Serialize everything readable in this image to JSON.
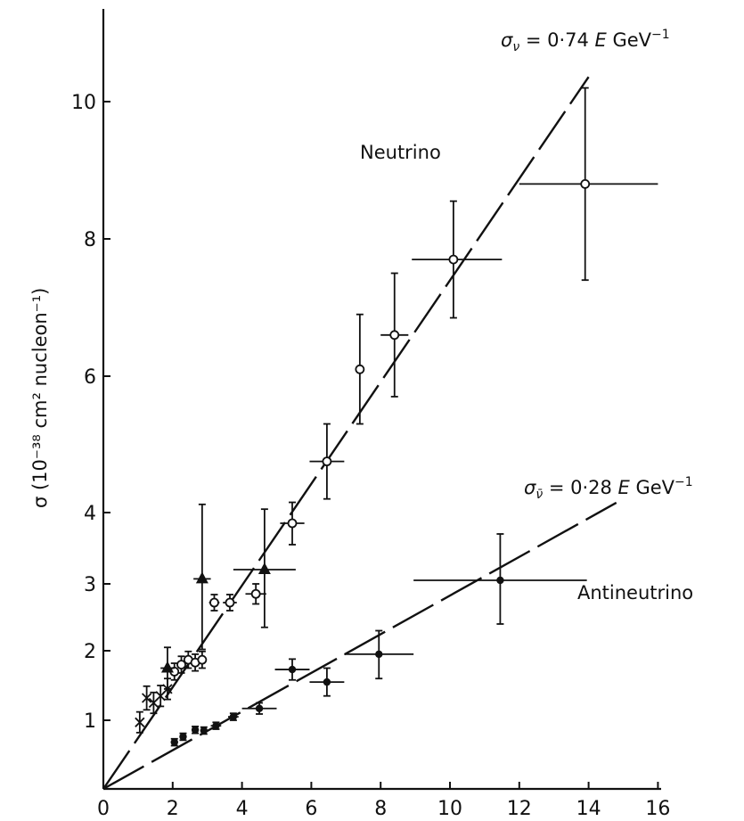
{
  "chart_data": {
    "type": "scatter",
    "title": "",
    "xlabel": "",
    "ylabel": "σ (10⁻³⁸ cm² nucleon⁻¹)",
    "xlim": [
      0,
      16
    ],
    "ylim": [
      0,
      11
    ],
    "grid": false,
    "x_ticks": [
      "0",
      "2",
      "4",
      "6",
      "8",
      "10",
      "12",
      "14",
      "16"
    ],
    "y_ticks": [
      "1",
      "2",
      "3",
      "4",
      "6",
      "8",
      "10"
    ],
    "fit_lines": [
      {
        "name": "σν = 0·74 E GeV⁻¹",
        "slope": 0.74,
        "x_range": [
          0,
          14
        ]
      },
      {
        "name": "σν̄ = 0·28 E GeV⁻¹",
        "slope": 0.28,
        "x_range": [
          0,
          14.8
        ]
      }
    ],
    "annotations": [
      {
        "text": "Neutrino"
      },
      {
        "text": "Antineutrino"
      }
    ],
    "series": [
      {
        "name": "Neutrino",
        "marker": "open-circle",
        "points": [
          {
            "x": 2.05,
            "y": 1.7,
            "yerr": 0.12
          },
          {
            "x": 2.25,
            "y": 1.8,
            "yerr": 0.12
          },
          {
            "x": 2.45,
            "y": 1.87,
            "yerr": 0.12
          },
          {
            "x": 2.65,
            "y": 1.83,
            "yerr": 0.12
          },
          {
            "x": 2.85,
            "y": 1.87,
            "yerr": 0.12
          },
          {
            "x": 3.2,
            "y": 2.72,
            "yerr": 0.12,
            "xerr": 0.15
          },
          {
            "x": 3.65,
            "y": 2.72,
            "yerr": 0.12,
            "xerr": 0.2
          },
          {
            "x": 4.4,
            "y": 2.85,
            "yerr": 0.15,
            "xerr": 0.3
          },
          {
            "x": 5.45,
            "y": 3.85,
            "yerr": 0.3,
            "xerr": 0.35
          },
          {
            "x": 6.45,
            "y": 4.75,
            "yerr": 0.55,
            "xerr": 0.5
          },
          {
            "x": 7.4,
            "y": 6.1,
            "yerr": 0.8,
            "xerr": 0.1
          },
          {
            "x": 8.4,
            "y": 6.6,
            "yerr": 0.9,
            "xerr": 0.4
          },
          {
            "x": 10.1,
            "y": 7.7,
            "yerr": 0.85,
            "xerr": [
              1.2,
              1.4
            ]
          },
          {
            "x": 13.9,
            "y": 8.8,
            "yerr": 1.4,
            "xerr": [
              1.9,
              2.1
            ]
          }
        ]
      },
      {
        "name": "Neutrino",
        "marker": "filled-triangle",
        "points": [
          {
            "x": 1.85,
            "y": 1.75,
            "yerr": 0.3,
            "xerr": 0.2
          },
          {
            "x": 2.85,
            "y": 3.07,
            "yerr": 1.05,
            "xerr": 0.25
          },
          {
            "x": 4.65,
            "y": 3.2,
            "yerr": 0.85,
            "xerr": 0.9
          }
        ]
      },
      {
        "name": "Neutrino",
        "marker": "cross",
        "points": [
          {
            "x": 1.05,
            "y": 0.97,
            "yerr": 0.15
          },
          {
            "x": 1.25,
            "y": 1.32,
            "yerr": 0.17
          },
          {
            "x": 1.45,
            "y": 1.25,
            "yerr": 0.15
          },
          {
            "x": 1.65,
            "y": 1.35,
            "yerr": 0.15
          },
          {
            "x": 1.85,
            "y": 1.45,
            "yerr": 0.15
          }
        ]
      },
      {
        "name": "Antineutrino",
        "marker": "filled-circle",
        "points": [
          {
            "x": 2.05,
            "y": 0.68,
            "yerr": 0.05,
            "xerr": 0.1
          },
          {
            "x": 2.3,
            "y": 0.76,
            "yerr": 0.05,
            "xerr": 0.1
          },
          {
            "x": 2.65,
            "y": 0.86,
            "yerr": 0.05,
            "xerr": 0.1
          },
          {
            "x": 2.9,
            "y": 0.85,
            "yerr": 0.05,
            "xerr": 0.1
          },
          {
            "x": 3.25,
            "y": 0.92,
            "yerr": 0.05,
            "xerr": 0.15
          },
          {
            "x": 3.75,
            "y": 1.05,
            "yerr": 0.05,
            "xerr": 0.15
          },
          {
            "x": 4.5,
            "y": 1.17,
            "yerr": 0.08,
            "xerr": 0.5
          },
          {
            "x": 5.45,
            "y": 1.73,
            "yerr": 0.15,
            "xerr": 0.5
          },
          {
            "x": 6.45,
            "y": 1.55,
            "yerr": 0.2,
            "xerr": 0.5
          },
          {
            "x": 7.95,
            "y": 1.95,
            "yerr": 0.35,
            "xerr": 1.0
          },
          {
            "x": 11.45,
            "y": 3.05,
            "yerr": 0.65,
            "xerr": 2.5
          }
        ]
      }
    ]
  }
}
